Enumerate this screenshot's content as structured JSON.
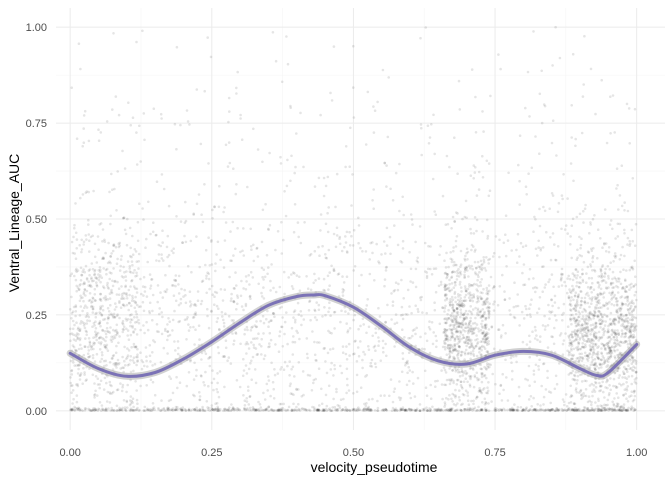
{
  "chart_data": {
    "type": "scatter",
    "title": "",
    "xlabel": "velocity_pseudotime",
    "ylabel": "Ventral_Lineage_AUC",
    "xlim": [
      -0.025,
      1.05
    ],
    "ylim": [
      -0.05,
      1.05
    ],
    "x_ticks": [
      0.0,
      0.25,
      0.5,
      0.75,
      1.0
    ],
    "x_tick_labels": [
      "0.00",
      "0.25",
      "0.50",
      "0.75",
      "1.00"
    ],
    "y_ticks": [
      0.0,
      0.25,
      0.5,
      0.75,
      1.0
    ],
    "y_tick_labels": [
      "0.00",
      "0.25",
      "0.50",
      "0.75",
      "1.00"
    ],
    "grid": true,
    "legend": "none",
    "colors": {
      "points": "#000000",
      "smooth_line": "#7b72b6",
      "ribbon": "#999999",
      "grid_major": "#ebebeb",
      "grid_minor": "#f5f5f5"
    },
    "point_alpha": 0.1,
    "series": [
      {
        "type": "smooth",
        "x": [
          0.0,
          0.05,
          0.1,
          0.15,
          0.2,
          0.25,
          0.3,
          0.35,
          0.4,
          0.43,
          0.45,
          0.5,
          0.55,
          0.6,
          0.65,
          0.7,
          0.75,
          0.8,
          0.85,
          0.9,
          0.93,
          0.95,
          1.0
        ],
        "y": [
          0.15,
          0.11,
          0.09,
          0.1,
          0.135,
          0.18,
          0.23,
          0.275,
          0.298,
          0.302,
          0.3,
          0.27,
          0.22,
          0.165,
          0.13,
          0.122,
          0.145,
          0.155,
          0.145,
          0.11,
          0.092,
          0.1,
          0.173
        ]
      }
    ],
    "point_clusters": [
      {
        "x_range": [
          0.0,
          1.0
        ],
        "y_center": 0.0,
        "y_spread": 0.004,
        "count": 700
      },
      {
        "x_range": [
          0.0,
          1.0
        ],
        "y_center": 0.22,
        "y_spread": 0.14,
        "count": 1700
      },
      {
        "x_range": [
          0.0,
          1.0
        ],
        "y_center": 0.5,
        "y_spread": 0.18,
        "count": 400
      },
      {
        "x_range": [
          0.0,
          0.12
        ],
        "y_center": 0.25,
        "y_spread": 0.12,
        "count": 450
      },
      {
        "x_range": [
          0.66,
          0.74
        ],
        "y_center": 0.22,
        "y_spread": 0.1,
        "count": 650
      },
      {
        "x_range": [
          0.88,
          1.0
        ],
        "y_center": 0.2,
        "y_spread": 0.1,
        "count": 900
      },
      {
        "x_range": [
          0.0,
          1.0
        ],
        "y_center": 0.78,
        "y_spread": 0.12,
        "count": 90
      }
    ]
  }
}
